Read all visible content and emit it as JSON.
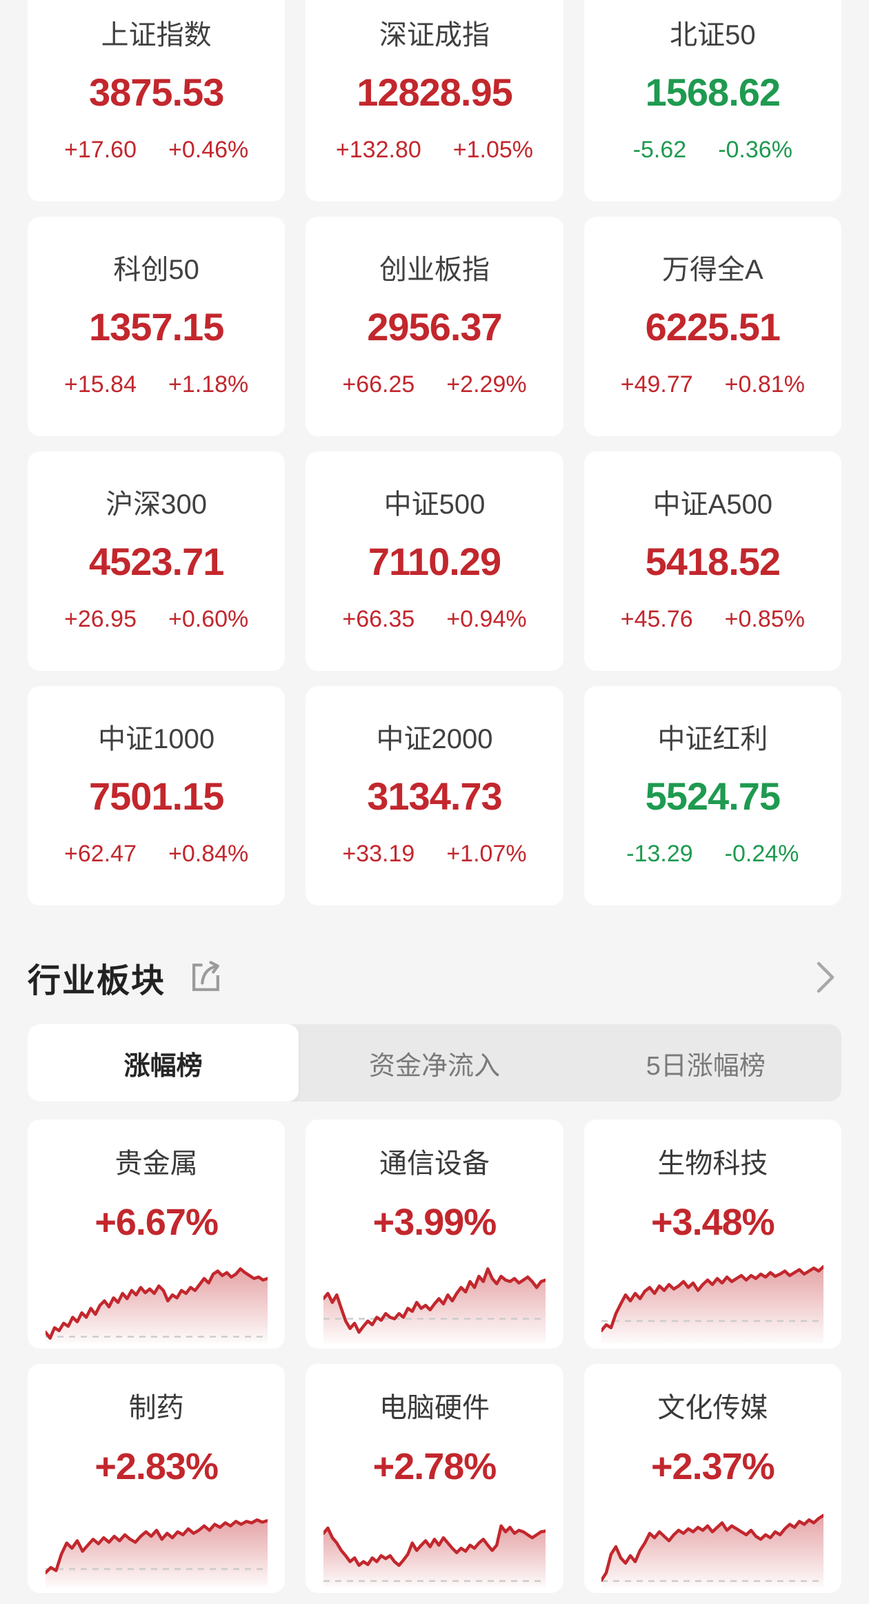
{
  "index_cards": [
    {
      "name": "上证指数",
      "value": "3875.53",
      "change": "+17.60",
      "change_pct": "+0.46%",
      "direction": "up"
    },
    {
      "name": "深证成指",
      "value": "12828.95",
      "change": "+132.80",
      "change_pct": "+1.05%",
      "direction": "up"
    },
    {
      "name": "北证50",
      "value": "1568.62",
      "change": "-5.62",
      "change_pct": "-0.36%",
      "direction": "down"
    },
    {
      "name": "科创50",
      "value": "1357.15",
      "change": "+15.84",
      "change_pct": "+1.18%",
      "direction": "up"
    },
    {
      "name": "创业板指",
      "value": "2956.37",
      "change": "+66.25",
      "change_pct": "+2.29%",
      "direction": "up"
    },
    {
      "name": "万得全A",
      "value": "6225.51",
      "change": "+49.77",
      "change_pct": "+0.81%",
      "direction": "up"
    },
    {
      "name": "沪深300",
      "value": "4523.71",
      "change": "+26.95",
      "change_pct": "+0.60%",
      "direction": "up"
    },
    {
      "name": "中证500",
      "value": "7110.29",
      "change": "+66.35",
      "change_pct": "+0.94%",
      "direction": "up"
    },
    {
      "name": "中证A500",
      "value": "5418.52",
      "change": "+45.76",
      "change_pct": "+0.85%",
      "direction": "up"
    },
    {
      "name": "中证1000",
      "value": "7501.15",
      "change": "+62.47",
      "change_pct": "+0.84%",
      "direction": "up"
    },
    {
      "name": "中证2000",
      "value": "3134.73",
      "change": "+33.19",
      "change_pct": "+1.07%",
      "direction": "up"
    },
    {
      "name": "中证红利",
      "value": "5524.75",
      "change": "-13.29",
      "change_pct": "-0.24%",
      "direction": "down"
    }
  ],
  "sector_section": {
    "title": "行业板块",
    "tabs": [
      {
        "key": "gainers",
        "label": "涨幅榜",
        "active": true
      },
      {
        "key": "net-inflow",
        "label": "资金净流入",
        "active": false
      },
      {
        "key": "5day-gainers",
        "label": "5日涨幅榜",
        "active": false
      }
    ]
  },
  "sectors": [
    {
      "name": "贵金属",
      "change_pct": "+6.67%",
      "baseline": 0.04,
      "spark": [
        0.1,
        0.02,
        0.16,
        0.12,
        0.22,
        0.18,
        0.3,
        0.24,
        0.36,
        0.3,
        0.42,
        0.34,
        0.46,
        0.52,
        0.44,
        0.56,
        0.5,
        0.62,
        0.55,
        0.66,
        0.6,
        0.7,
        0.63,
        0.68,
        0.62,
        0.72,
        0.66,
        0.52,
        0.6,
        0.56,
        0.66,
        0.62,
        0.7,
        0.66,
        0.74,
        0.82,
        0.76,
        0.88,
        0.92,
        0.86,
        0.9,
        0.84,
        0.88,
        0.95,
        0.9,
        0.86,
        0.82,
        0.84,
        0.8,
        0.82
      ]
    },
    {
      "name": "通信设备",
      "change_pct": "+3.99%",
      "baseline": 0.28,
      "spark": [
        0.55,
        0.62,
        0.5,
        0.6,
        0.42,
        0.25,
        0.15,
        0.22,
        0.1,
        0.18,
        0.25,
        0.2,
        0.3,
        0.26,
        0.35,
        0.3,
        0.28,
        0.35,
        0.3,
        0.42,
        0.38,
        0.5,
        0.42,
        0.46,
        0.4,
        0.48,
        0.55,
        0.48,
        0.6,
        0.52,
        0.62,
        0.7,
        0.64,
        0.78,
        0.7,
        0.85,
        0.78,
        0.95,
        0.82,
        0.75,
        0.85,
        0.8,
        0.78,
        0.82,
        0.76,
        0.8,
        0.84,
        0.78,
        0.7,
        0.78,
        0.8
      ]
    },
    {
      "name": "生物科技",
      "change_pct": "+3.48%",
      "baseline": 0.25,
      "spark": [
        0.12,
        0.2,
        0.16,
        0.35,
        0.48,
        0.6,
        0.52,
        0.62,
        0.55,
        0.65,
        0.7,
        0.62,
        0.72,
        0.66,
        0.74,
        0.68,
        0.72,
        0.78,
        0.7,
        0.76,
        0.66,
        0.74,
        0.8,
        0.74,
        0.82,
        0.76,
        0.84,
        0.78,
        0.82,
        0.86,
        0.8,
        0.86,
        0.82,
        0.88,
        0.84,
        0.9,
        0.85,
        0.88,
        0.92,
        0.86,
        0.9,
        0.94,
        0.88,
        0.92,
        0.96,
        0.92,
        0.98
      ]
    },
    {
      "name": "制药",
      "change_pct": "+2.83%",
      "baseline": 0.2,
      "spark": [
        0.15,
        0.22,
        0.18,
        0.4,
        0.55,
        0.48,
        0.58,
        0.44,
        0.52,
        0.6,
        0.54,
        0.62,
        0.56,
        0.64,
        0.58,
        0.66,
        0.6,
        0.56,
        0.64,
        0.7,
        0.64,
        0.72,
        0.6,
        0.68,
        0.62,
        0.7,
        0.66,
        0.74,
        0.68,
        0.72,
        0.78,
        0.72,
        0.8,
        0.76,
        0.82,
        0.78,
        0.84,
        0.8,
        0.84,
        0.82,
        0.86,
        0.83,
        0.85
      ]
    },
    {
      "name": "电脑硬件",
      "change_pct": "+2.78%",
      "baseline": 0.04,
      "spark": [
        0.68,
        0.75,
        0.62,
        0.55,
        0.45,
        0.38,
        0.3,
        0.35,
        0.25,
        0.3,
        0.26,
        0.35,
        0.3,
        0.38,
        0.34,
        0.38,
        0.3,
        0.25,
        0.32,
        0.4,
        0.55,
        0.45,
        0.52,
        0.58,
        0.5,
        0.6,
        0.52,
        0.62,
        0.55,
        0.48,
        0.42,
        0.48,
        0.44,
        0.52,
        0.48,
        0.55,
        0.6,
        0.52,
        0.45,
        0.52,
        0.78,
        0.7,
        0.76,
        0.68,
        0.72,
        0.7,
        0.66,
        0.62,
        0.66,
        0.7,
        0.71
      ]
    },
    {
      "name": "文化传媒",
      "change_pct": "+2.37%",
      "baseline": 0.04,
      "spark": [
        0.05,
        0.15,
        0.4,
        0.5,
        0.35,
        0.28,
        0.38,
        0.3,
        0.45,
        0.55,
        0.68,
        0.62,
        0.7,
        0.64,
        0.58,
        0.66,
        0.72,
        0.68,
        0.74,
        0.7,
        0.76,
        0.72,
        0.78,
        0.7,
        0.76,
        0.82,
        0.72,
        0.78,
        0.74,
        0.7,
        0.66,
        0.72,
        0.64,
        0.6,
        0.66,
        0.62,
        0.7,
        0.66,
        0.74,
        0.8,
        0.76,
        0.84,
        0.8,
        0.86,
        0.82,
        0.88,
        0.92
      ]
    }
  ],
  "colors": {
    "up_red": "#c2272d",
    "down_green": "#1f9a50",
    "spark_line": "#c2272d",
    "background": "#f5f5f6"
  }
}
